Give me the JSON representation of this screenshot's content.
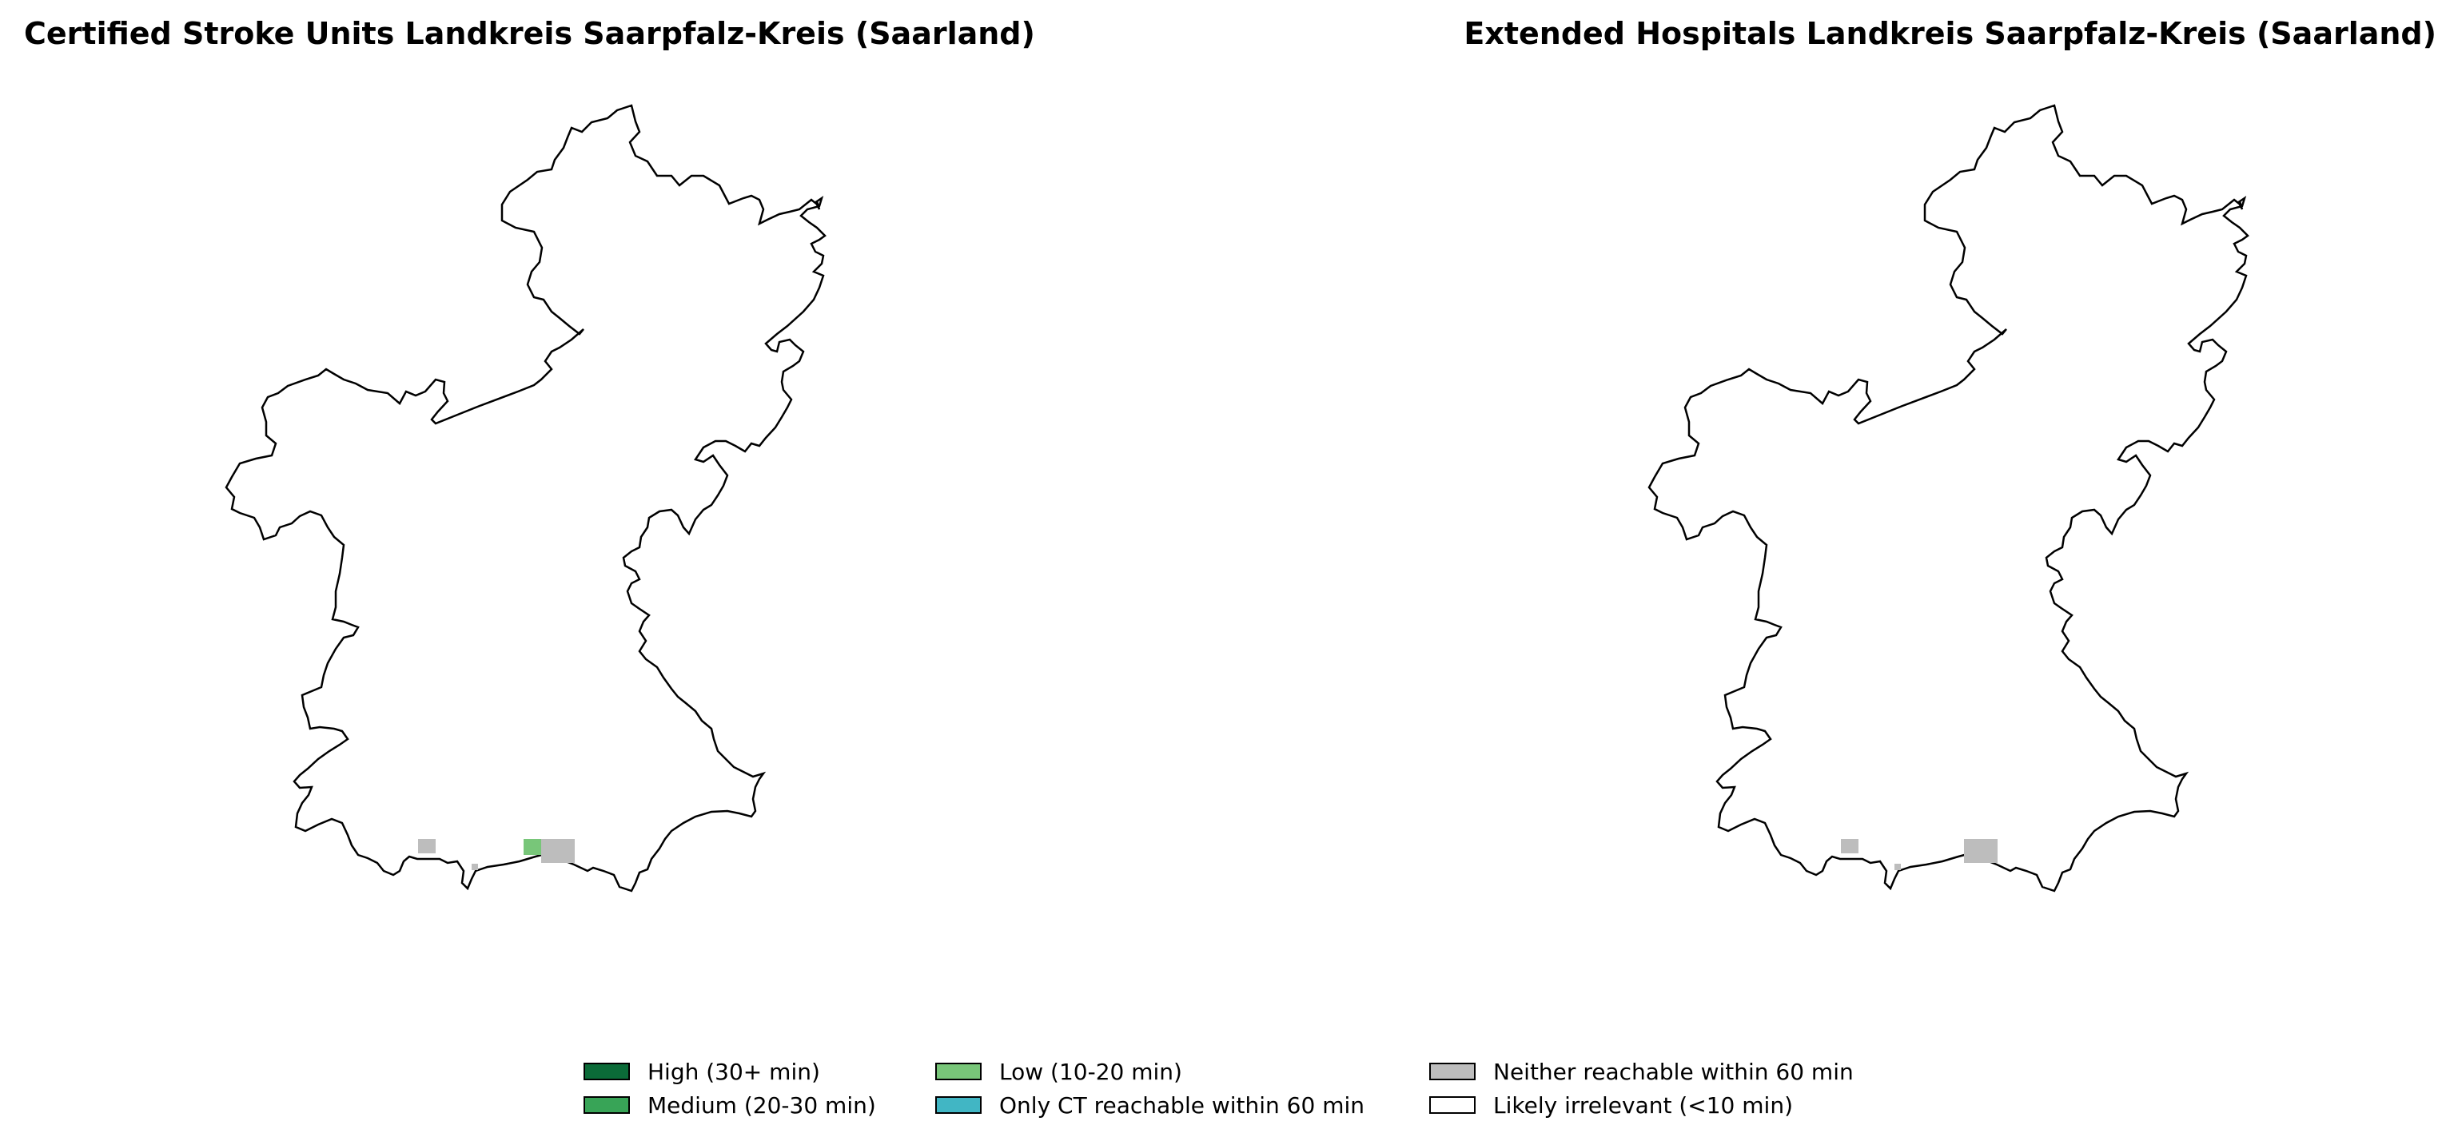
{
  "panels": [
    {
      "title": "Certified Stroke Units Landkreis Saarpfalz-Kreis (Saarland)"
    },
    {
      "title": "Extended Hospitals Landkreis Saarpfalz-Kreis (Saarland)"
    }
  ],
  "legend": [
    {
      "label": "High (30+ min)",
      "color": "#0b6b38"
    },
    {
      "label": "Medium (20-30 min)",
      "color": "#38a457"
    },
    {
      "label": "Low (10-20 min)",
      "color": "#78c679"
    },
    {
      "label": "Only CT reachable within 60 min",
      "color": "#41b6c4"
    },
    {
      "label": "Neither reachable within 60 min",
      "color": "#bdbdbd"
    },
    {
      "label": "Likely irrelevant (<10 min)",
      "color": "#ffffff"
    }
  ],
  "map_data": {
    "region": "Landkreis Saarpfalz-Kreis",
    "panels": [
      {
        "cells": [
          {
            "category": "Neither reachable within 60 min"
          },
          {
            "category": "Low (10-20 min)"
          },
          {
            "category": "Neither reachable within 60 min"
          },
          {
            "category": "Neither reachable within 60 min"
          }
        ]
      },
      {
        "cells": [
          {
            "category": "Neither reachable within 60 min"
          },
          {
            "category": "Neither reachable within 60 min"
          },
          {
            "category": "Neither reachable within 60 min"
          }
        ]
      }
    ]
  }
}
